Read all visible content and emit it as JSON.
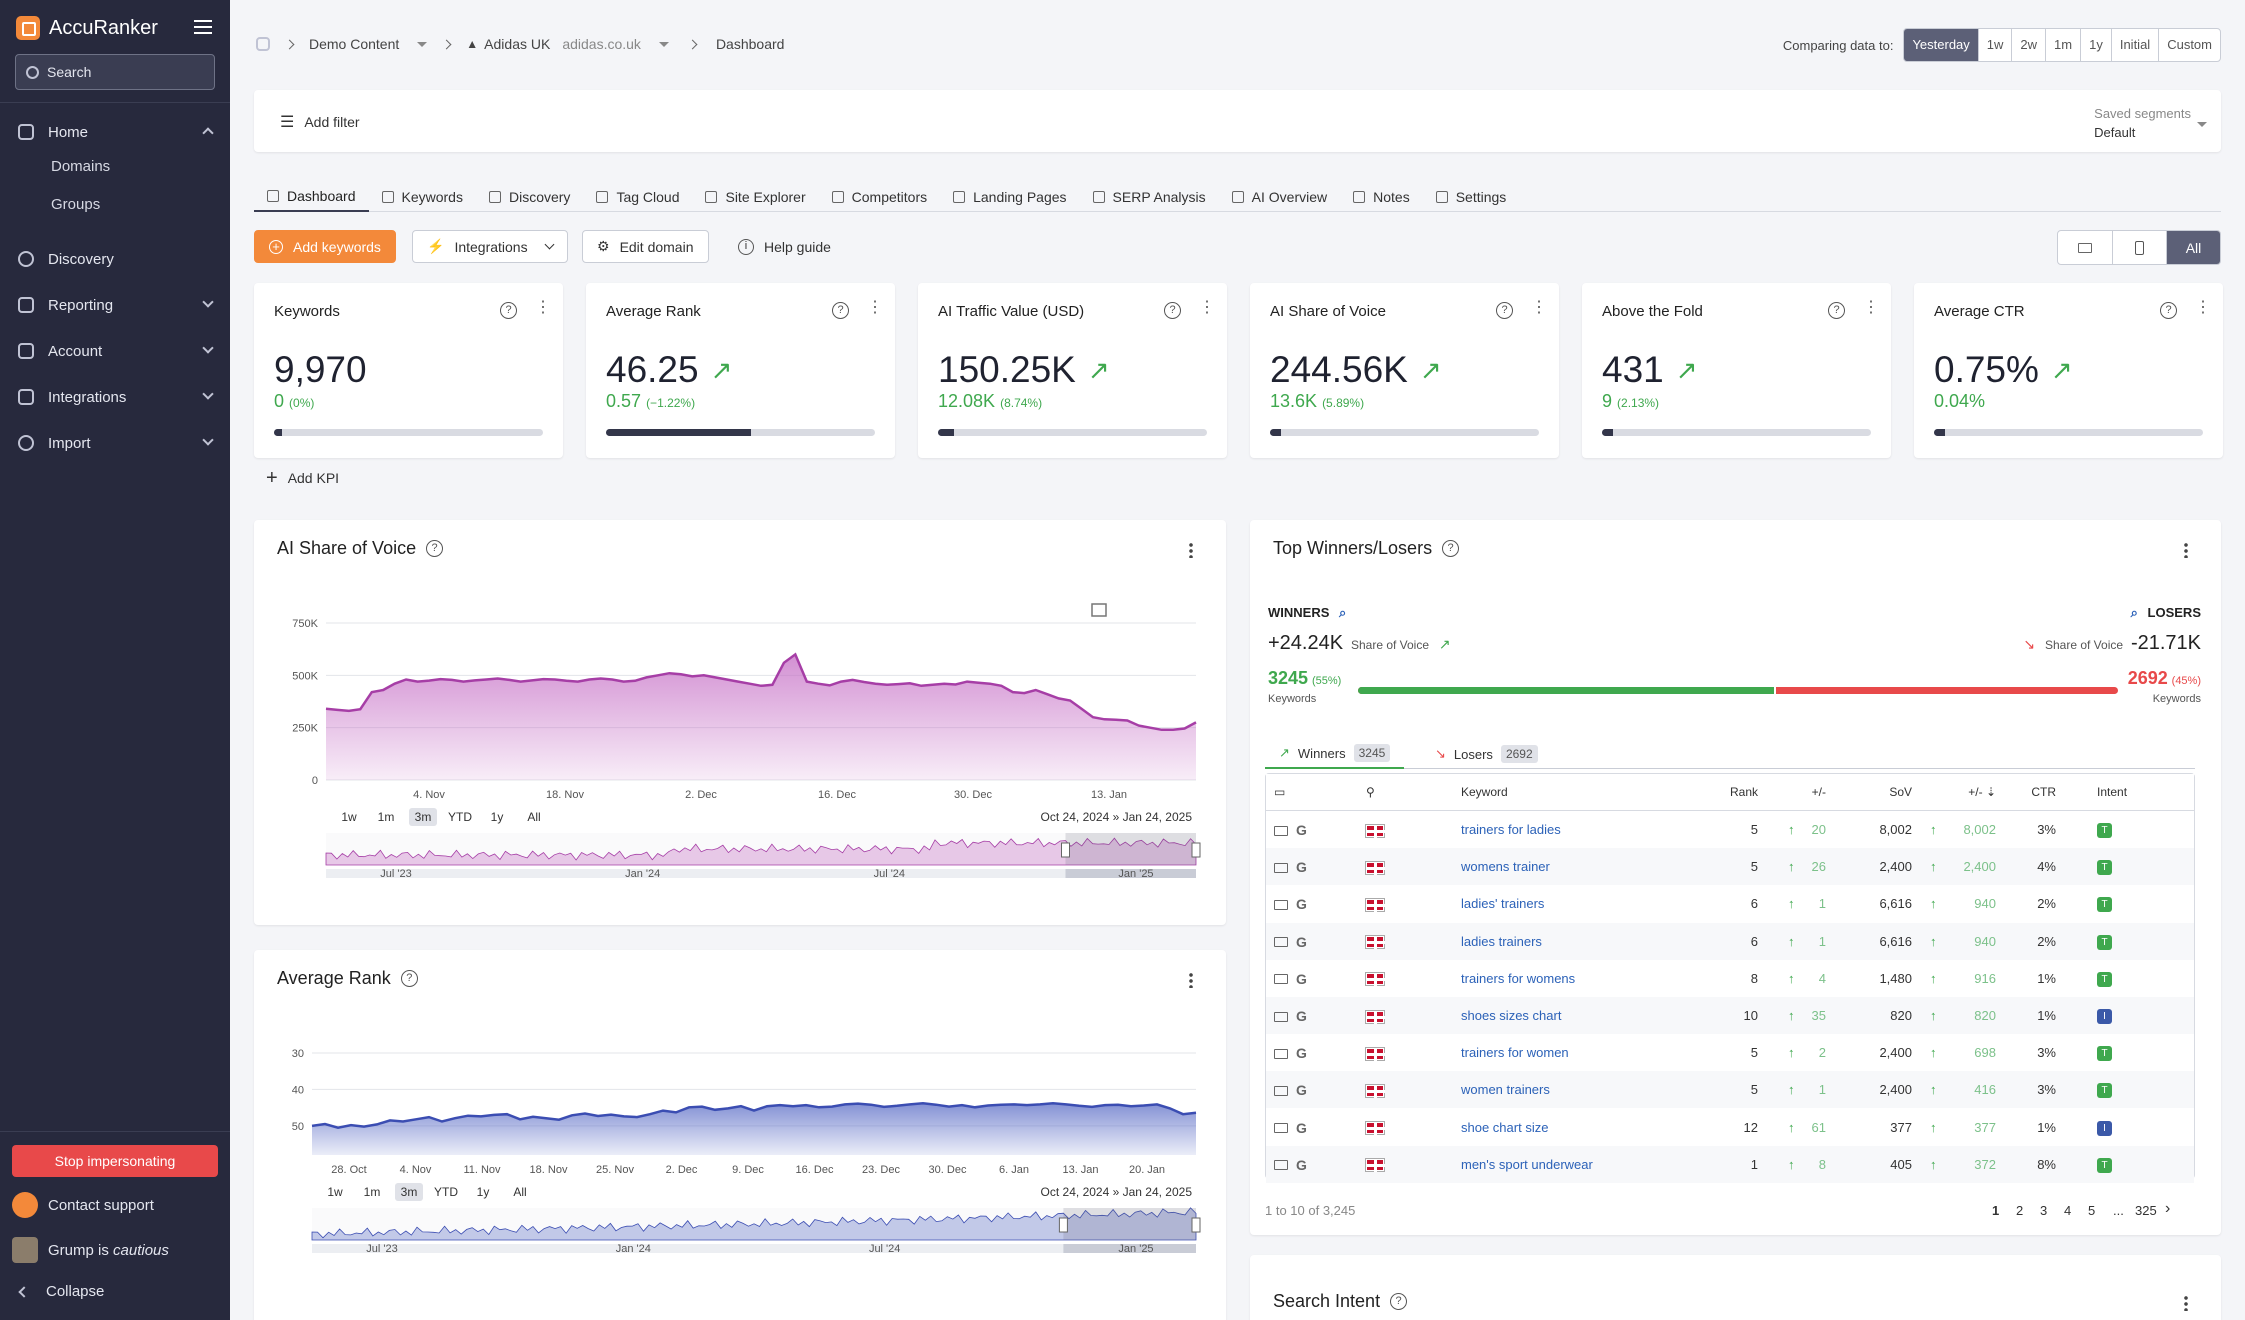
{
  "app": {
    "name": "AccuRanker",
    "search_placeholder": "Search"
  },
  "sidebar": {
    "home": "Home",
    "domains": "Domains",
    "groups": "Groups",
    "discovery": "Discovery",
    "reporting": "Reporting",
    "account": "Account",
    "integrations": "Integrations",
    "import": "Import",
    "stop_impersonating": "Stop impersonating",
    "contact_support": "Contact support",
    "user_status_prefix": "Grump is ",
    "user_status_mood": "cautious",
    "collapse": "Collapse"
  },
  "breadcrumb": {
    "demo": "Demo Content",
    "domain_name": "Adidas UK",
    "domain_url": "adidas.co.uk",
    "page": "Dashboard"
  },
  "compare": {
    "label": "Comparing data to:",
    "options": [
      "Yesterday",
      "1w",
      "2w",
      "1m",
      "1y",
      "Initial",
      "Custom"
    ],
    "active": "Yesterday"
  },
  "filter": {
    "add_label": "Add filter",
    "saved_label": "Saved segments",
    "saved_value": "Default"
  },
  "tabs": [
    "Dashboard",
    "Keywords",
    "Discovery",
    "Tag Cloud",
    "Site Explorer",
    "Competitors",
    "Landing Pages",
    "SERP Analysis",
    "AI Overview",
    "Notes",
    "Settings"
  ],
  "actions": {
    "add_keywords": "Add keywords",
    "integrations": "Integrations",
    "edit_domain": "Edit domain",
    "help_guide": "Help guide",
    "device_all": "All"
  },
  "kpis": [
    {
      "title": "Keywords",
      "value": "9,970",
      "delta": "0",
      "delta_pct": "(0%)",
      "bar": 0.03,
      "trend": false
    },
    {
      "title": "Average Rank",
      "value": "46.25",
      "delta": "0.57",
      "delta_pct": "(−1.22%)",
      "bar": 0.54,
      "trend": true
    },
    {
      "title": "AI Traffic Value (USD)",
      "value": "150.25K",
      "delta": "12.08K",
      "delta_pct": "(8.74%)",
      "bar": 0.06,
      "trend": true
    },
    {
      "title": "AI Share of Voice",
      "value": "244.56K",
      "delta": "13.6K",
      "delta_pct": "(5.89%)",
      "bar": 0.04,
      "trend": true
    },
    {
      "title": "Above the Fold",
      "value": "431",
      "delta": "9",
      "delta_pct": "(2.13%)",
      "bar": 0.04,
      "trend": true
    },
    {
      "title": "Average CTR",
      "value": "0.75%",
      "delta": "0.04%",
      "delta_pct": "",
      "bar": 0.04,
      "trend": true
    }
  ],
  "add_kpi": "Add KPI",
  "sov_card": {
    "title": "AI Share of Voice",
    "range_buttons": [
      "1w",
      "1m",
      "3m",
      "YTD",
      "1y",
      "All"
    ],
    "active_range": "3m",
    "range_from": "Oct 24, 2024",
    "range_sep": "»",
    "range_to": "Jan 24, 2025",
    "nav_labels": [
      "Jul '23",
      "Jan '24",
      "Jul '24",
      "Jan '25"
    ]
  },
  "rank_card": {
    "title": "Average Rank",
    "range_buttons": [
      "1w",
      "1m",
      "3m",
      "YTD",
      "1y",
      "All"
    ],
    "active_range": "3m",
    "range_from": "Oct 24, 2024",
    "range_sep": "»",
    "range_to": "Jan 24, 2025",
    "nav_labels": [
      "Jul '23",
      "Jan '24",
      "Jul '24",
      "Jan '25"
    ]
  },
  "chart_data": [
    {
      "type": "area",
      "title": "AI Share of Voice",
      "ylabel": "",
      "xlabel": "",
      "ylim": [
        0,
        750000
      ],
      "yticks": [
        "0",
        "250K",
        "500K",
        "750K"
      ],
      "yvalues": [
        0,
        250000,
        500000,
        750000
      ],
      "xticks": [
        "4. Nov",
        "18. Nov",
        "2. Dec",
        "16. Dec",
        "30. Dec",
        "13. Jan"
      ],
      "series": [
        {
          "name": "AI Share of Voice",
          "values": [
            340000,
            335000,
            330000,
            338000,
            420000,
            430000,
            460000,
            480000,
            470000,
            475000,
            482000,
            478000,
            470000,
            476000,
            480000,
            485000,
            478000,
            470000,
            476000,
            482000,
            480000,
            474000,
            470000,
            480000,
            485000,
            480000,
            470000,
            474000,
            490000,
            500000,
            510000,
            505000,
            495000,
            500000,
            490000,
            480000,
            470000,
            460000,
            450000,
            455000,
            560000,
            600000,
            470000,
            460000,
            452000,
            470000,
            478000,
            468000,
            460000,
            455000,
            458000,
            462000,
            450000,
            455000,
            460000,
            456000,
            470000,
            465000,
            460000,
            450000,
            420000,
            415000,
            430000,
            410000,
            390000,
            380000,
            340000,
            300000,
            290000,
            288000,
            284000,
            260000,
            250000,
            240000,
            240000,
            246000,
            275000
          ]
        }
      ]
    },
    {
      "type": "area",
      "title": "Average Rank",
      "ylabel": "",
      "xlabel": "",
      "ylim": [
        58,
        30
      ],
      "yticks": [
        "30",
        "40",
        "50"
      ],
      "yvalues": [
        30,
        40,
        50
      ],
      "xticks": [
        "28. Oct",
        "4. Nov",
        "11. Nov",
        "18. Nov",
        "25. Nov",
        "2. Dec",
        "9. Dec",
        "16. Dec",
        "23. Dec",
        "30. Dec",
        "6. Jan",
        "13. Jan",
        "20. Jan"
      ],
      "series": [
        {
          "name": "Average Rank",
          "values": [
            50,
            49.5,
            50.5,
            49.8,
            50.2,
            49.6,
            48.5,
            48.8,
            48.2,
            47.6,
            48.8,
            47.9,
            47.2,
            47.4,
            47.0,
            46.8,
            48.2,
            47.5,
            47.9,
            48.3,
            47.1,
            46.6,
            47.3,
            46.9,
            47.4,
            47.6,
            46.8,
            45.8,
            46.3,
            44.9,
            44.7,
            45.6,
            45.2,
            44.6,
            45.8,
            44.6,
            44.3,
            44.6,
            44.3,
            44.9,
            44.7,
            44.1,
            43.9,
            44.2,
            44.8,
            44.5,
            44.1,
            43.8,
            44.2,
            44.7,
            44.3,
            44.9,
            44.4,
            44.2,
            44.1,
            44.3,
            44.1,
            43.8,
            44.1,
            44.5,
            44.8,
            44.3,
            44.2,
            44.6,
            44.4,
            44.1,
            45.2,
            46.8,
            46.4
          ]
        }
      ]
    }
  ],
  "winners_card": {
    "title": "Top Winners/Losers",
    "winners_label": "WINNERS",
    "losers_label": "LOSERS",
    "winners_sov": "+24.24K",
    "losers_sov": "-21.71K",
    "sov_caption": "Share of Voice",
    "winners_count": "3245",
    "winners_pct": "(55%)",
    "losers_count": "2692",
    "losers_pct": "(45%)",
    "keywords_caption": "Keywords",
    "winners_share": 0.55,
    "tab_winners": "Winners",
    "tab_winners_count": "3245",
    "tab_losers": "Losers",
    "tab_losers_count": "2692",
    "columns": [
      "Keyword",
      "Rank",
      "+/-",
      "SoV",
      "+/-",
      "CTR",
      "Intent"
    ],
    "rows": [
      {
        "keyword": "trainers for ladies",
        "rank": "5",
        "rank_delta": "20",
        "sov": "8,002",
        "sov_delta": "8,002",
        "ctr": "3%",
        "intent": "T"
      },
      {
        "keyword": "womens trainer",
        "rank": "5",
        "rank_delta": "26",
        "sov": "2,400",
        "sov_delta": "2,400",
        "ctr": "4%",
        "intent": "T"
      },
      {
        "keyword": "ladies' trainers",
        "rank": "6",
        "rank_delta": "1",
        "sov": "6,616",
        "sov_delta": "940",
        "ctr": "2%",
        "intent": "T"
      },
      {
        "keyword": "ladies trainers",
        "rank": "6",
        "rank_delta": "1",
        "sov": "6,616",
        "sov_delta": "940",
        "ctr": "2%",
        "intent": "T"
      },
      {
        "keyword": "trainers for womens",
        "rank": "8",
        "rank_delta": "4",
        "sov": "1,480",
        "sov_delta": "916",
        "ctr": "1%",
        "intent": "T"
      },
      {
        "keyword": "shoes sizes chart",
        "rank": "10",
        "rank_delta": "35",
        "sov": "820",
        "sov_delta": "820",
        "ctr": "1%",
        "intent": "I"
      },
      {
        "keyword": "trainers for women",
        "rank": "5",
        "rank_delta": "2",
        "sov": "2,400",
        "sov_delta": "698",
        "ctr": "3%",
        "intent": "T"
      },
      {
        "keyword": "women trainers",
        "rank": "5",
        "rank_delta": "1",
        "sov": "2,400",
        "sov_delta": "416",
        "ctr": "3%",
        "intent": "T"
      },
      {
        "keyword": "shoe chart size",
        "rank": "12",
        "rank_delta": "61",
        "sov": "377",
        "sov_delta": "377",
        "ctr": "1%",
        "intent": "I"
      },
      {
        "keyword": "men's sport underwear",
        "rank": "1",
        "rank_delta": "8",
        "sov": "405",
        "sov_delta": "372",
        "ctr": "8%",
        "intent": "T"
      }
    ],
    "pager_info": "1 to 10 of 3,245",
    "pages": [
      "1",
      "2",
      "3",
      "4",
      "5",
      "...",
      "325"
    ]
  },
  "search_intent_card": {
    "title": "Search Intent"
  },
  "colors": {
    "accent": "#f3893a",
    "sidebar": "#27293d",
    "winner": "#3fa84e",
    "loser": "#e8494a",
    "sov_fill": "#c46bc4",
    "rank_fill": "#5a6cc6"
  }
}
